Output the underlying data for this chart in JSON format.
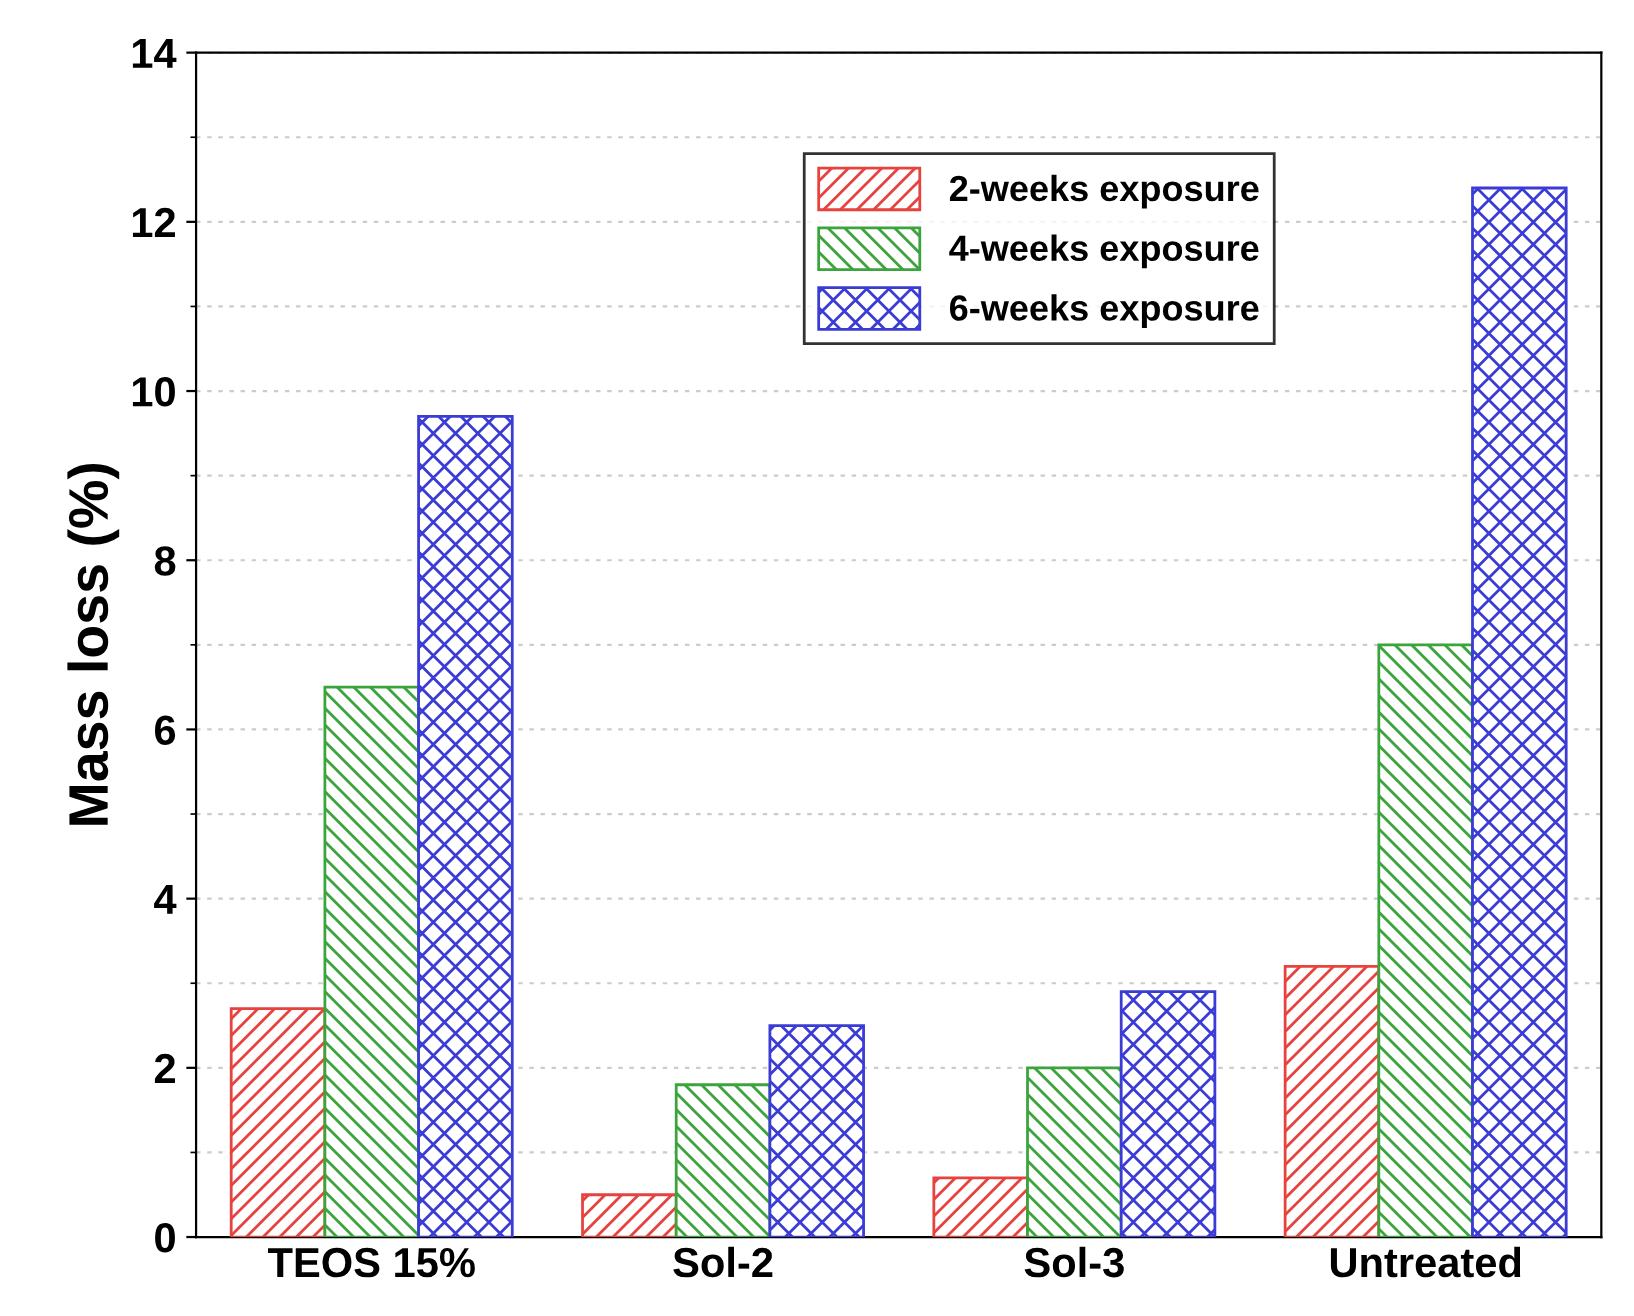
{
  "chart_data": {
    "type": "bar",
    "ylabel": "Mass loss (%)",
    "categories": [
      "TEOS 15%",
      "Sol-2",
      "Sol-3",
      "Untreated"
    ],
    "series": [
      {
        "name": "2-weeks exposure",
        "color": "#e8423f",
        "values": [
          2.7,
          0.5,
          0.7,
          3.2
        ]
      },
      {
        "name": "4-weeks exposure",
        "color": "#3ca43c",
        "values": [
          6.5,
          1.8,
          2.0,
          7.0
        ]
      },
      {
        "name": "6-weeks exposure",
        "color": "#3b3bd6",
        "values": [
          9.7,
          2.5,
          2.9,
          12.4
        ]
      }
    ],
    "ylim": [
      0,
      14
    ],
    "yticks": [
      0,
      2,
      4,
      6,
      8,
      10,
      12,
      14
    ],
    "grid": "y",
    "legend": "top"
  }
}
